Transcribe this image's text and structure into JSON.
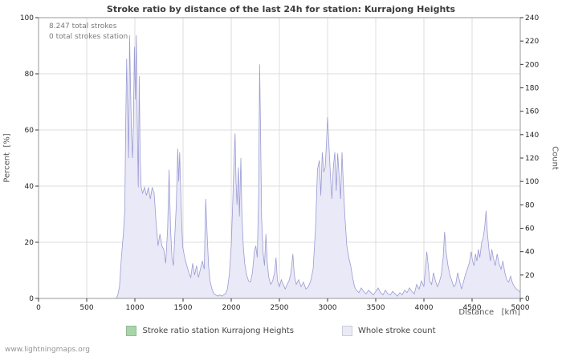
{
  "title": "Stroke ratio by distance of the last 24h for station: Kurrajong Heights",
  "annotations": {
    "line1": "8.247 total strokes",
    "line2": "0 total strokes station"
  },
  "axes": {
    "left": "Percent  [%]",
    "right": "Count",
    "x": "Distance   [km]"
  },
  "legend": [
    {
      "label": "Stroke ratio station Kurrajong Heights",
      "color": "#a8d5a8"
    },
    {
      "label": "Whole stroke count",
      "color": "#e9e9f7"
    }
  ],
  "watermark": "www.lightningmaps.org",
  "chart_data": {
    "type": "area",
    "title": "Stroke ratio by distance of the last 24h for station: Kurrajong Heights",
    "xlabel": "Distance [km]",
    "x_range": [
      0,
      5000
    ],
    "x_ticks": [
      0,
      500,
      1000,
      1500,
      2000,
      2500,
      3000,
      3500,
      4000,
      4500,
      5000
    ],
    "y_left": {
      "label": "Percent [%]",
      "range": [
        0,
        100
      ],
      "ticks": [
        0,
        20,
        40,
        60,
        80,
        100
      ]
    },
    "y_right": {
      "label": "Count",
      "range": [
        0,
        240
      ],
      "ticks": [
        0,
        20,
        40,
        60,
        80,
        100,
        120,
        140,
        160,
        180,
        200,
        220,
        240
      ]
    },
    "grid": true,
    "legend_position": "bottom",
    "total_strokes": "8.247",
    "total_strokes_station": "0",
    "series": [
      {
        "name": "Whole stroke count",
        "axis": "right",
        "fill": "#e9e9f7",
        "stroke": "#9b9bd4",
        "points": [
          [
            0,
            0
          ],
          [
            200,
            0
          ],
          [
            400,
            0
          ],
          [
            600,
            0
          ],
          [
            800,
            0
          ],
          [
            820,
            2
          ],
          [
            840,
            10
          ],
          [
            860,
            35
          ],
          [
            880,
            55
          ],
          [
            895,
            75
          ],
          [
            905,
            150
          ],
          [
            915,
            205
          ],
          [
            925,
            160
          ],
          [
            935,
            120
          ],
          [
            945,
            225
          ],
          [
            955,
            180
          ],
          [
            965,
            140
          ],
          [
            975,
            120
          ],
          [
            985,
            150
          ],
          [
            995,
            215
          ],
          [
            1005,
            170
          ],
          [
            1015,
            225
          ],
          [
            1025,
            150
          ],
          [
            1035,
            95
          ],
          [
            1045,
            190
          ],
          [
            1055,
            120
          ],
          [
            1065,
            95
          ],
          [
            1080,
            90
          ],
          [
            1100,
            95
          ],
          [
            1120,
            88
          ],
          [
            1140,
            95
          ],
          [
            1160,
            85
          ],
          [
            1180,
            95
          ],
          [
            1200,
            90
          ],
          [
            1220,
            65
          ],
          [
            1240,
            45
          ],
          [
            1260,
            55
          ],
          [
            1280,
            45
          ],
          [
            1300,
            42
          ],
          [
            1320,
            30
          ],
          [
            1340,
            60
          ],
          [
            1355,
            110
          ],
          [
            1370,
            60
          ],
          [
            1385,
            35
          ],
          [
            1400,
            28
          ],
          [
            1415,
            55
          ],
          [
            1430,
            80
          ],
          [
            1445,
            128
          ],
          [
            1455,
            100
          ],
          [
            1465,
            125
          ],
          [
            1480,
            80
          ],
          [
            1495,
            45
          ],
          [
            1510,
            38
          ],
          [
            1525,
            32
          ],
          [
            1540,
            28
          ],
          [
            1560,
            22
          ],
          [
            1580,
            18
          ],
          [
            1600,
            30
          ],
          [
            1620,
            20
          ],
          [
            1640,
            28
          ],
          [
            1660,
            18
          ],
          [
            1680,
            25
          ],
          [
            1700,
            32
          ],
          [
            1720,
            25
          ],
          [
            1735,
            85
          ],
          [
            1750,
            55
          ],
          [
            1765,
            28
          ],
          [
            1780,
            15
          ],
          [
            1800,
            8
          ],
          [
            1820,
            4
          ],
          [
            1840,
            3
          ],
          [
            1860,
            2
          ],
          [
            1880,
            3
          ],
          [
            1900,
            2
          ],
          [
            1920,
            3
          ],
          [
            1940,
            4
          ],
          [
            1960,
            8
          ],
          [
            1980,
            20
          ],
          [
            2000,
            45
          ],
          [
            2015,
            80
          ],
          [
            2030,
            120
          ],
          [
            2040,
            141
          ],
          [
            2050,
            100
          ],
          [
            2060,
            80
          ],
          [
            2075,
            112
          ],
          [
            2085,
            70
          ],
          [
            2100,
            120
          ],
          [
            2110,
            75
          ],
          [
            2125,
            45
          ],
          [
            2140,
            30
          ],
          [
            2160,
            20
          ],
          [
            2180,
            15
          ],
          [
            2200,
            14
          ],
          [
            2220,
            22
          ],
          [
            2240,
            40
          ],
          [
            2255,
            45
          ],
          [
            2270,
            35
          ],
          [
            2285,
            90
          ],
          [
            2295,
            200
          ],
          [
            2305,
            140
          ],
          [
            2315,
            70
          ],
          [
            2330,
            40
          ],
          [
            2345,
            28
          ],
          [
            2360,
            55
          ],
          [
            2375,
            30
          ],
          [
            2390,
            18
          ],
          [
            2410,
            12
          ],
          [
            2430,
            15
          ],
          [
            2450,
            22
          ],
          [
            2465,
            35
          ],
          [
            2480,
            15
          ],
          [
            2500,
            10
          ],
          [
            2520,
            16
          ],
          [
            2540,
            12
          ],
          [
            2560,
            8
          ],
          [
            2580,
            12
          ],
          [
            2600,
            15
          ],
          [
            2620,
            22
          ],
          [
            2640,
            38
          ],
          [
            2655,
            20
          ],
          [
            2675,
            12
          ],
          [
            2700,
            16
          ],
          [
            2725,
            10
          ],
          [
            2750,
            14
          ],
          [
            2775,
            8
          ],
          [
            2800,
            10
          ],
          [
            2825,
            15
          ],
          [
            2850,
            25
          ],
          [
            2875,
            60
          ],
          [
            2895,
            110
          ],
          [
            2915,
            118
          ],
          [
            2930,
            88
          ],
          [
            2945,
            125
          ],
          [
            2960,
            108
          ],
          [
            2975,
            112
          ],
          [
            2990,
            135
          ],
          [
            3000,
            155
          ],
          [
            3015,
            130
          ],
          [
            3030,
            105
          ],
          [
            3045,
            85
          ],
          [
            3060,
            112
          ],
          [
            3075,
            125
          ],
          [
            3090,
            92
          ],
          [
            3105,
            124
          ],
          [
            3120,
            105
          ],
          [
            3135,
            85
          ],
          [
            3150,
            125
          ],
          [
            3165,
            95
          ],
          [
            3180,
            70
          ],
          [
            3200,
            45
          ],
          [
            3220,
            35
          ],
          [
            3240,
            28
          ],
          [
            3260,
            18
          ],
          [
            3280,
            10
          ],
          [
            3300,
            7
          ],
          [
            3325,
            5
          ],
          [
            3350,
            9
          ],
          [
            3375,
            6
          ],
          [
            3400,
            4
          ],
          [
            3425,
            7
          ],
          [
            3450,
            5
          ],
          [
            3475,
            3
          ],
          [
            3500,
            6
          ],
          [
            3525,
            9
          ],
          [
            3550,
            5
          ],
          [
            3575,
            3
          ],
          [
            3600,
            7
          ],
          [
            3625,
            4
          ],
          [
            3650,
            3
          ],
          [
            3675,
            6
          ],
          [
            3700,
            4
          ],
          [
            3725,
            2
          ],
          [
            3750,
            5
          ],
          [
            3775,
            3
          ],
          [
            3800,
            7
          ],
          [
            3825,
            5
          ],
          [
            3850,
            9
          ],
          [
            3875,
            6
          ],
          [
            3900,
            4
          ],
          [
            3925,
            12
          ],
          [
            3950,
            8
          ],
          [
            3975,
            15
          ],
          [
            4000,
            10
          ],
          [
            4015,
            25
          ],
          [
            4030,
            40
          ],
          [
            4045,
            28
          ],
          [
            4060,
            15
          ],
          [
            4080,
            12
          ],
          [
            4100,
            22
          ],
          [
            4120,
            15
          ],
          [
            4140,
            10
          ],
          [
            4160,
            14
          ],
          [
            4180,
            20
          ],
          [
            4200,
            35
          ],
          [
            4215,
            57
          ],
          [
            4230,
            40
          ],
          [
            4250,
            28
          ],
          [
            4270,
            20
          ],
          [
            4290,
            15
          ],
          [
            4310,
            10
          ],
          [
            4330,
            12
          ],
          [
            4350,
            22
          ],
          [
            4370,
            15
          ],
          [
            4390,
            8
          ],
          [
            4410,
            14
          ],
          [
            4430,
            20
          ],
          [
            4450,
            25
          ],
          [
            4470,
            30
          ],
          [
            4490,
            40
          ],
          [
            4505,
            32
          ],
          [
            4520,
            28
          ],
          [
            4535,
            38
          ],
          [
            4550,
            32
          ],
          [
            4565,
            42
          ],
          [
            4580,
            35
          ],
          [
            4600,
            48
          ],
          [
            4615,
            52
          ],
          [
            4630,
            60
          ],
          [
            4645,
            75
          ],
          [
            4660,
            55
          ],
          [
            4675,
            42
          ],
          [
            4690,
            32
          ],
          [
            4705,
            42
          ],
          [
            4720,
            35
          ],
          [
            4740,
            28
          ],
          [
            4760,
            38
          ],
          [
            4780,
            30
          ],
          [
            4800,
            25
          ],
          [
            4820,
            32
          ],
          [
            4840,
            22
          ],
          [
            4860,
            16
          ],
          [
            4880,
            14
          ],
          [
            4900,
            19
          ],
          [
            4920,
            13
          ],
          [
            4940,
            10
          ],
          [
            4960,
            8
          ],
          [
            4980,
            7
          ],
          [
            5000,
            5
          ]
        ]
      },
      {
        "name": "Stroke ratio station Kurrajong Heights",
        "axis": "left",
        "fill": "none",
        "stroke": "#a8d5a8",
        "points": [
          [
            0,
            0
          ],
          [
            5000,
            0
          ]
        ]
      }
    ]
  }
}
